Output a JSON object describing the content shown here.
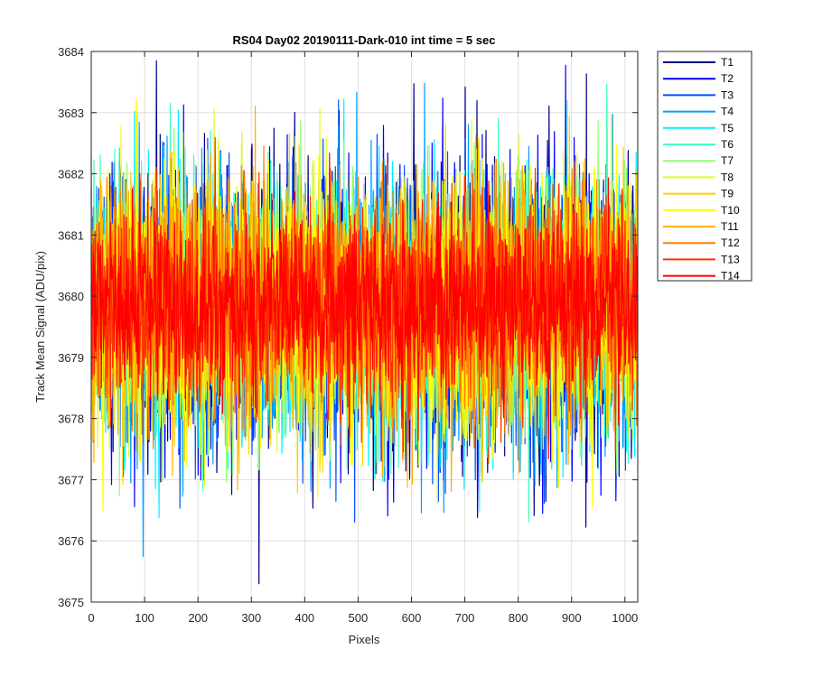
{
  "chart_data": {
    "type": "line",
    "title": "RS04 Day02 20190111-Dark-010 int time = 5 sec",
    "xlabel": "Pixels",
    "ylabel": "Track Mean Signal (ADU/pix)",
    "xlim": [
      0,
      1024
    ],
    "ylim": [
      3675,
      3684
    ],
    "xticks": [
      0,
      100,
      200,
      300,
      400,
      500,
      600,
      700,
      800,
      900,
      1000
    ],
    "yticks": [
      3675,
      3676,
      3677,
      3678,
      3679,
      3680,
      3681,
      3682,
      3683,
      3684
    ],
    "grid": true,
    "legend_position": "outside-top-right",
    "n_points": 1024,
    "series": [
      {
        "name": "T1",
        "color": "#00008f",
        "mean": 3679.8,
        "spread": 2.2
      },
      {
        "name": "T2",
        "color": "#0000ff",
        "mean": 3679.8,
        "spread": 2.15
      },
      {
        "name": "T3",
        "color": "#0050ff",
        "mean": 3679.8,
        "spread": 2.1
      },
      {
        "name": "T4",
        "color": "#009fff",
        "mean": 3679.8,
        "spread": 2.05
      },
      {
        "name": "T5",
        "color": "#00efff",
        "mean": 3679.8,
        "spread": 2.0
      },
      {
        "name": "T6",
        "color": "#40ffbf",
        "mean": 3679.8,
        "spread": 2.0
      },
      {
        "name": "T7",
        "color": "#8fff70",
        "mean": 3679.8,
        "spread": 1.95
      },
      {
        "name": "T8",
        "color": "#dfff20",
        "mean": 3679.8,
        "spread": 1.95
      },
      {
        "name": "T9",
        "color": "#ffcf00",
        "mean": 3679.8,
        "spread": 1.9
      },
      {
        "name": "T10",
        "color": "#ffff00",
        "mean": 3679.9,
        "spread": 1.85
      },
      {
        "name": "T11",
        "color": "#ffb000",
        "mean": 3679.9,
        "spread": 1.8
      },
      {
        "name": "T12",
        "color": "#ff7f00",
        "mean": 3679.9,
        "spread": 1.7
      },
      {
        "name": "T13",
        "color": "#ff3000",
        "mean": 3679.9,
        "spread": 1.55
      },
      {
        "name": "T14",
        "color": "#ff0000",
        "mean": 3679.9,
        "spread": 1.3
      }
    ]
  }
}
